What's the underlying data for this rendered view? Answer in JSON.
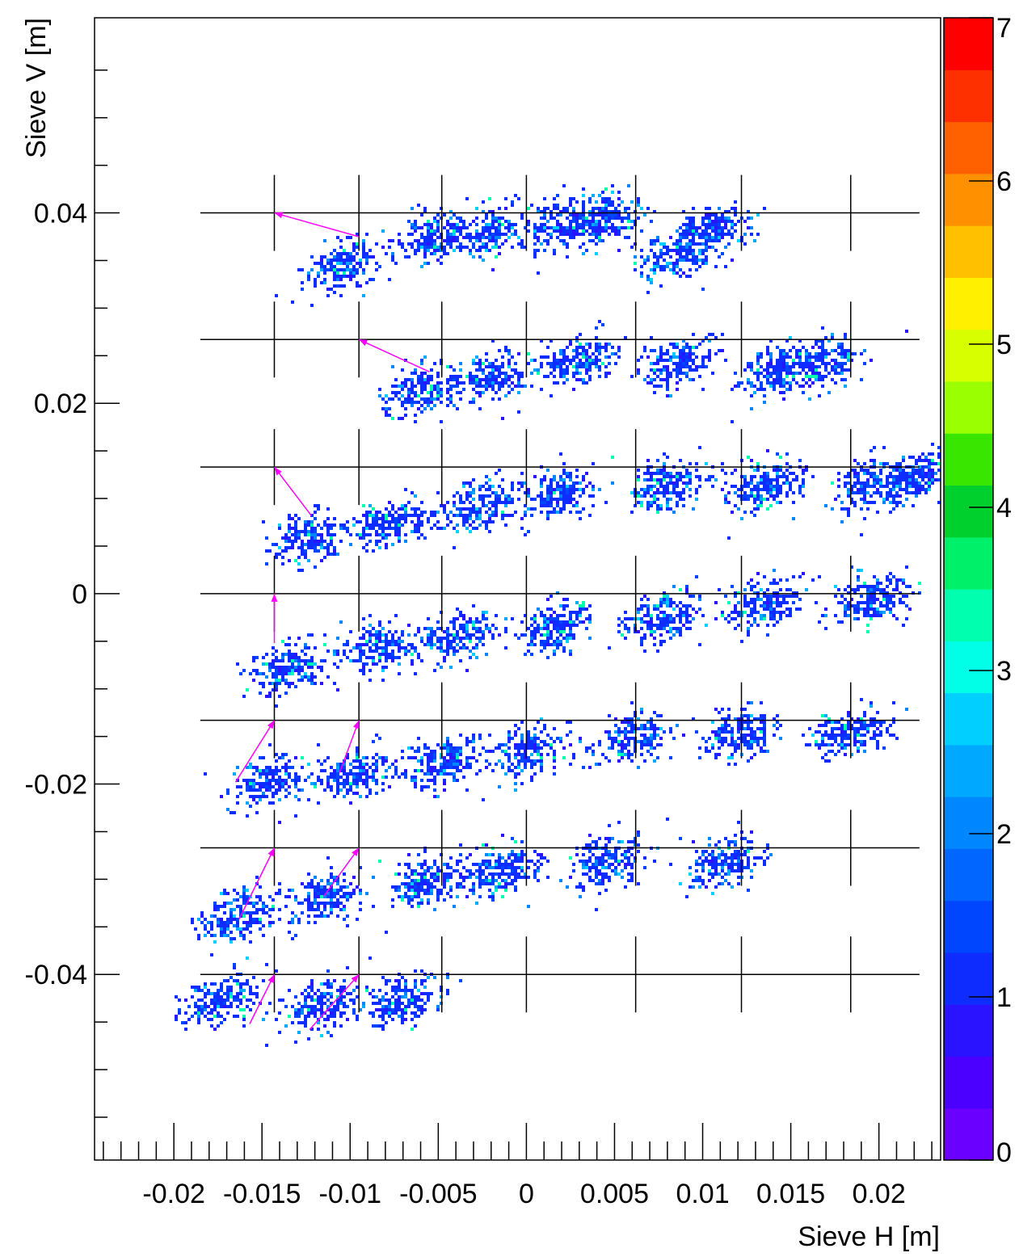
{
  "chart_data": {
    "type": "heatmap",
    "title": "",
    "xlabel": "Sieve H [m]",
    "ylabel": "Sieve V [m]",
    "xlim": [
      -0.0245,
      0.0235
    ],
    "ylim": [
      -0.0595,
      0.0605
    ],
    "x_ticks": [
      -0.02,
      -0.015,
      -0.01,
      -0.005,
      0,
      0.005,
      0.01,
      0.015,
      0.02
    ],
    "x_tick_labels": [
      "-0.02",
      "-0.015",
      "-0.01",
      "-0.005",
      "0",
      "0.005",
      "0.01",
      "0.015",
      "0.02"
    ],
    "y_ticks": [
      -0.04,
      -0.02,
      0,
      0.02,
      0.04
    ],
    "y_tick_labels": [
      "-0.04",
      "-0.02",
      "0",
      "0.02",
      "0.04"
    ],
    "colorbar": {
      "range": [
        0,
        7
      ],
      "tick_labels": [
        "0",
        "1",
        "2",
        "3",
        "4",
        "5",
        "6",
        "7"
      ],
      "palette": [
        "#6a00ff",
        "#4b00ff",
        "#2a14ff",
        "#0f2cff",
        "#0045ff",
        "#0066ff",
        "#0086ff",
        "#00a8ff",
        "#00cfff",
        "#00ffe6",
        "#00ffae",
        "#00f06a",
        "#00d02e",
        "#39e600",
        "#9aff00",
        "#d8ff00",
        "#fff000",
        "#ffc000",
        "#ff9000",
        "#ff6000",
        "#ff3000",
        "#ff0000"
      ]
    },
    "sieve_holes": {
      "rows_y": [
        0.04,
        0.0267,
        0.0133,
        0.0,
        -0.0133,
        -0.0267,
        -0.04
      ],
      "columns_x": [
        -0.0143,
        -0.0095,
        -0.0048,
        0.0,
        0.0062,
        0.0122,
        0.0184
      ],
      "line_x_range": [
        -0.0185,
        0.0223
      ]
    },
    "clusters": [
      {
        "row": 0.04,
        "points": [
          [
            -0.0105,
            0.0345
          ],
          [
            -0.0055,
            0.0375
          ],
          [
            -0.0022,
            0.038
          ],
          [
            0.0022,
            0.039
          ],
          [
            0.0045,
            0.0395
          ],
          [
            0.0085,
            0.036
          ],
          [
            0.0105,
            0.0385
          ]
        ]
      },
      {
        "row": 0.0267,
        "points": [
          [
            -0.006,
            0.0215
          ],
          [
            -0.0018,
            0.023
          ],
          [
            0.0028,
            0.0245
          ],
          [
            0.0085,
            0.0245
          ],
          [
            0.0142,
            0.0235
          ],
          [
            0.0168,
            0.0245
          ]
        ]
      },
      {
        "row": 0.0133,
        "points": [
          [
            -0.0125,
            0.006
          ],
          [
            -0.0078,
            0.0075
          ],
          [
            -0.0028,
            0.0095
          ],
          [
            0.0017,
            0.0105
          ],
          [
            0.0078,
            0.0115
          ],
          [
            0.0135,
            0.0115
          ],
          [
            0.0195,
            0.0115
          ],
          [
            0.022,
            0.0125
          ]
        ]
      },
      {
        "row": 0.0,
        "points": [
          [
            -0.0135,
            -0.0075
          ],
          [
            -0.0085,
            -0.0055
          ],
          [
            -0.004,
            -0.0045
          ],
          [
            0.0015,
            -0.0035
          ],
          [
            0.0075,
            -0.0025
          ],
          [
            0.0135,
            -0.001
          ],
          [
            0.0195,
            -0.0005
          ]
        ]
      },
      {
        "row": -0.0133,
        "points": [
          [
            -0.0145,
            -0.0195
          ],
          [
            -0.0098,
            -0.019
          ],
          [
            -0.0048,
            -0.0175
          ],
          [
            0.0,
            -0.0165
          ],
          [
            0.006,
            -0.015
          ],
          [
            0.012,
            -0.0145
          ],
          [
            0.0182,
            -0.0145
          ]
        ]
      },
      {
        "row": -0.0267,
        "points": [
          [
            -0.0165,
            -0.0335
          ],
          [
            -0.0115,
            -0.032
          ],
          [
            -0.0058,
            -0.03
          ],
          [
            -0.0015,
            -0.029
          ],
          [
            0.0045,
            -0.028
          ],
          [
            0.0112,
            -0.028
          ]
        ]
      },
      {
        "row": -0.04,
        "points": [
          [
            -0.0175,
            -0.0425
          ],
          [
            -0.0118,
            -0.043
          ],
          [
            -0.007,
            -0.0425
          ]
        ]
      }
    ],
    "arrows": [
      {
        "from": [
          -0.0095,
          0.0375
        ],
        "to": [
          -0.0143,
          0.04
        ]
      },
      {
        "from": [
          -0.0055,
          0.0233
        ],
        "to": [
          -0.0095,
          0.0267
        ]
      },
      {
        "from": [
          -0.0122,
          0.0082
        ],
        "to": [
          -0.0143,
          0.0133
        ]
      },
      {
        "from": [
          -0.0143,
          -0.0052
        ],
        "to": [
          -0.0143,
          0.0
        ]
      },
      {
        "from": [
          -0.0165,
          -0.0198
        ],
        "to": [
          -0.0143,
          -0.0133
        ]
      },
      {
        "from": [
          -0.0106,
          -0.0188
        ],
        "to": [
          -0.0095,
          -0.0133
        ]
      },
      {
        "from": [
          -0.0163,
          -0.0342
        ],
        "to": [
          -0.0143,
          -0.0267
        ]
      },
      {
        "from": [
          -0.0115,
          -0.0318
        ],
        "to": [
          -0.0095,
          -0.0267
        ]
      },
      {
        "from": [
          -0.0157,
          -0.0452
        ],
        "to": [
          -0.0143,
          -0.04
        ]
      },
      {
        "from": [
          -0.0123,
          -0.0458
        ],
        "to": [
          -0.0095,
          -0.04
        ]
      }
    ]
  }
}
